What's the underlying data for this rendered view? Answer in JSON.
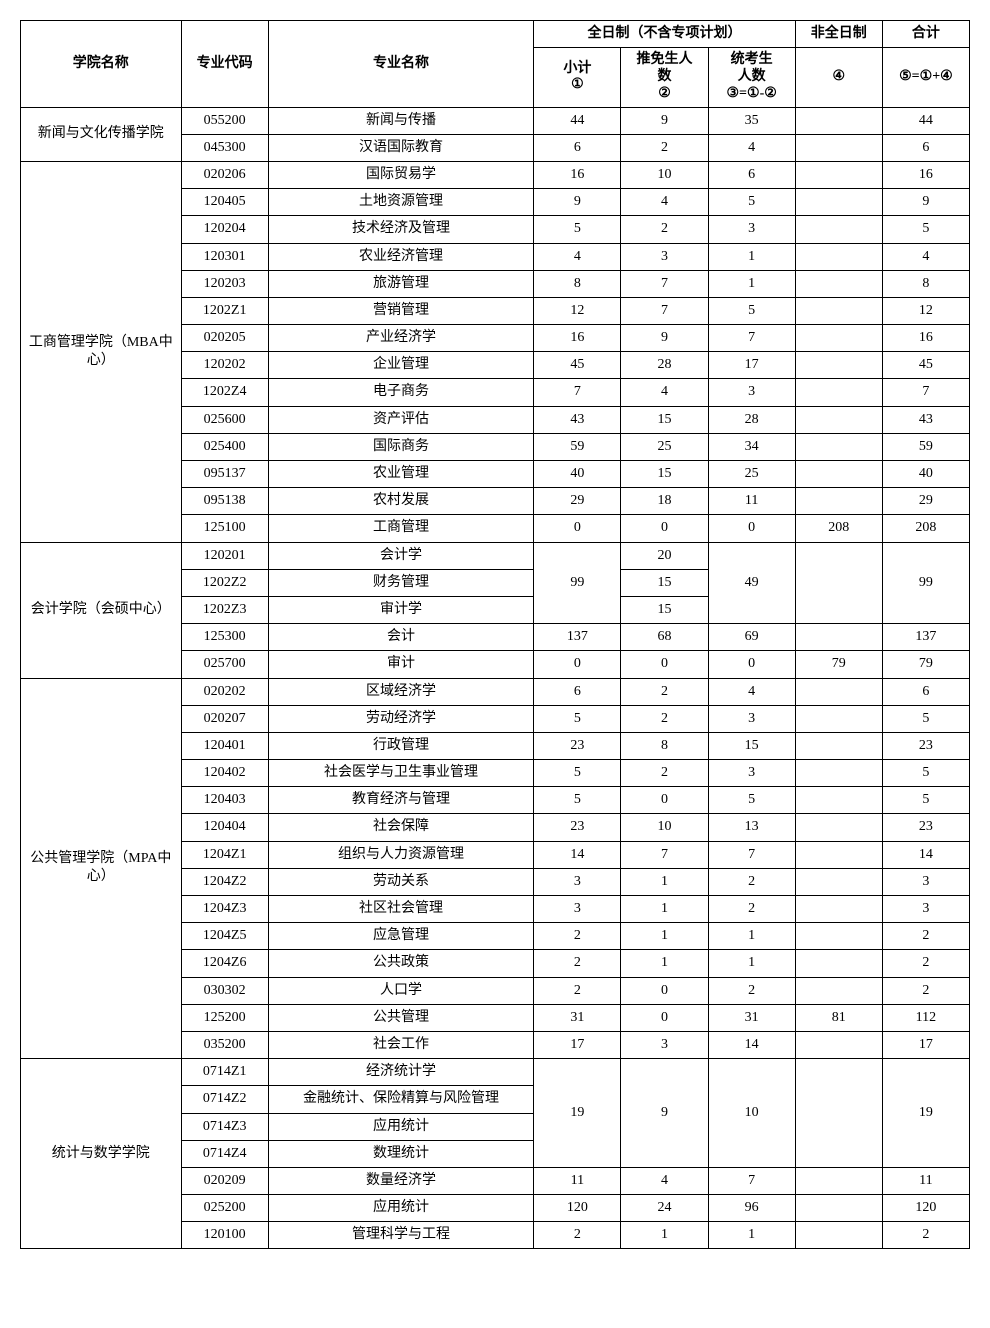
{
  "headers": {
    "college": "学院名称",
    "code": "专业代码",
    "major": "专业名称",
    "fulltime": "全日制（不含专项计划）",
    "parttime": "非全日制",
    "total": "合计",
    "subtotal_line1": "小计",
    "subtotal_line2": "①",
    "rec_line1": "推免生人",
    "rec_line2": "数",
    "rec_line3": "②",
    "exam_line1": "统考生",
    "exam_line2": "人数",
    "exam_line3": "③=①-②",
    "col4": "④",
    "col5": "⑤=①+④"
  },
  "groups": [
    {
      "name": "新闻与文化传播学院",
      "rows": [
        {
          "code": "055200",
          "major": "新闻与传播",
          "c1": "44",
          "c2": "9",
          "c3": "35",
          "c4": "",
          "c5": "44"
        },
        {
          "code": "045300",
          "major": "汉语国际教育",
          "c1": "6",
          "c2": "2",
          "c3": "4",
          "c4": "",
          "c5": "6"
        }
      ]
    },
    {
      "name": "工商管理学院（MBA中心）",
      "rows": [
        {
          "code": "020206",
          "major": "国际贸易学",
          "c1": "16",
          "c2": "10",
          "c3": "6",
          "c4": "",
          "c5": "16"
        },
        {
          "code": "120405",
          "major": "土地资源管理",
          "c1": "9",
          "c2": "4",
          "c3": "5",
          "c4": "",
          "c5": "9"
        },
        {
          "code": "120204",
          "major": "技术经济及管理",
          "c1": "5",
          "c2": "2",
          "c3": "3",
          "c4": "",
          "c5": "5"
        },
        {
          "code": "120301",
          "major": "农业经济管理",
          "c1": "4",
          "c2": "3",
          "c3": "1",
          "c4": "",
          "c5": "4"
        },
        {
          "code": "120203",
          "major": "旅游管理",
          "c1": "8",
          "c2": "7",
          "c3": "1",
          "c4": "",
          "c5": "8"
        },
        {
          "code": "1202Z1",
          "major": "营销管理",
          "c1": "12",
          "c2": "7",
          "c3": "5",
          "c4": "",
          "c5": "12"
        },
        {
          "code": "020205",
          "major": "产业经济学",
          "c1": "16",
          "c2": "9",
          "c3": "7",
          "c4": "",
          "c5": "16"
        },
        {
          "code": "120202",
          "major": "企业管理",
          "c1": "45",
          "c2": "28",
          "c3": "17",
          "c4": "",
          "c5": "45"
        },
        {
          "code": "1202Z4",
          "major": "电子商务",
          "c1": "7",
          "c2": "4",
          "c3": "3",
          "c4": "",
          "c5": "7"
        },
        {
          "code": "025600",
          "major": "资产评估",
          "c1": "43",
          "c2": "15",
          "c3": "28",
          "c4": "",
          "c5": "43"
        },
        {
          "code": "025400",
          "major": "国际商务",
          "c1": "59",
          "c2": "25",
          "c3": "34",
          "c4": "",
          "c5": "59"
        },
        {
          "code": "095137",
          "major": "农业管理",
          "c1": "40",
          "c2": "15",
          "c3": "25",
          "c4": "",
          "c5": "40"
        },
        {
          "code": "095138",
          "major": "农村发展",
          "c1": "29",
          "c2": "18",
          "c3": "11",
          "c4": "",
          "c5": "29"
        },
        {
          "code": "125100",
          "major": "工商管理",
          "c1": "0",
          "c2": "0",
          "c3": "0",
          "c4": "208",
          "c5": "208"
        }
      ]
    },
    {
      "name": "会计学院（会硕中心）",
      "mergedBlocks": [
        {
          "span": 3,
          "c1": "99",
          "c3": "49",
          "c4": "",
          "c5": "99",
          "inner": [
            {
              "code": "120201",
              "major": "会计学",
              "c2": "20"
            },
            {
              "code": "1202Z2",
              "major": "财务管理",
              "c2": "15"
            },
            {
              "code": "1202Z3",
              "major": "审计学",
              "c2": "15"
            }
          ]
        }
      ],
      "rows": [
        {
          "code": "125300",
          "major": "会计",
          "c1": "137",
          "c2": "68",
          "c3": "69",
          "c4": "",
          "c5": "137"
        },
        {
          "code": "025700",
          "major": "审计",
          "c1": "0",
          "c2": "0",
          "c3": "0",
          "c4": "79",
          "c5": "79"
        }
      ]
    },
    {
      "name": "公共管理学院（MPA中心）",
      "rows": [
        {
          "code": "020202",
          "major": "区域经济学",
          "c1": "6",
          "c2": "2",
          "c3": "4",
          "c4": "",
          "c5": "6"
        },
        {
          "code": "020207",
          "major": "劳动经济学",
          "c1": "5",
          "c2": "2",
          "c3": "3",
          "c4": "",
          "c5": "5"
        },
        {
          "code": "120401",
          "major": "行政管理",
          "c1": "23",
          "c2": "8",
          "c3": "15",
          "c4": "",
          "c5": "23"
        },
        {
          "code": "120402",
          "major": "社会医学与卫生事业管理",
          "c1": "5",
          "c2": "2",
          "c3": "3",
          "c4": "",
          "c5": "5"
        },
        {
          "code": "120403",
          "major": "教育经济与管理",
          "c1": "5",
          "c2": "0",
          "c3": "5",
          "c4": "",
          "c5": "5"
        },
        {
          "code": "120404",
          "major": "社会保障",
          "c1": "23",
          "c2": "10",
          "c3": "13",
          "c4": "",
          "c5": "23"
        },
        {
          "code": "1204Z1",
          "major": "组织与人力资源管理",
          "c1": "14",
          "c2": "7",
          "c3": "7",
          "c4": "",
          "c5": "14"
        },
        {
          "code": "1204Z2",
          "major": "劳动关系",
          "c1": "3",
          "c2": "1",
          "c3": "2",
          "c4": "",
          "c5": "3"
        },
        {
          "code": "1204Z3",
          "major": "社区社会管理",
          "c1": "3",
          "c2": "1",
          "c3": "2",
          "c4": "",
          "c5": "3"
        },
        {
          "code": "1204Z5",
          "major": "应急管理",
          "c1": "2",
          "c2": "1",
          "c3": "1",
          "c4": "",
          "c5": "2"
        },
        {
          "code": "1204Z6",
          "major": "公共政策",
          "c1": "2",
          "c2": "1",
          "c3": "1",
          "c4": "",
          "c5": "2"
        },
        {
          "code": "030302",
          "major": "人口学",
          "c1": "2",
          "c2": "0",
          "c3": "2",
          "c4": "",
          "c5": "2"
        },
        {
          "code": "125200",
          "major": "公共管理",
          "c1": "31",
          "c2": "0",
          "c3": "31",
          "c4": "81",
          "c5": "112"
        },
        {
          "code": "035200",
          "major": "社会工作",
          "c1": "17",
          "c2": "3",
          "c3": "14",
          "c4": "",
          "c5": "17"
        }
      ]
    },
    {
      "name": "统计与数学学院",
      "mergedBlocks": [
        {
          "span": 4,
          "c1": "19",
          "c2": "9",
          "c3": "10",
          "c4": "",
          "c5": "19",
          "inner": [
            {
              "code": "0714Z1",
              "major": "经济统计学"
            },
            {
              "code": "0714Z2",
              "major": "金融统计、保险精算与风险管理"
            },
            {
              "code": "0714Z3",
              "major": "应用统计"
            },
            {
              "code": "0714Z4",
              "major": "数理统计"
            }
          ]
        }
      ],
      "rows": [
        {
          "code": "020209",
          "major": "数量经济学",
          "c1": "11",
          "c2": "4",
          "c3": "7",
          "c4": "",
          "c5": "11"
        },
        {
          "code": "025200",
          "major": "应用统计",
          "c1": "120",
          "c2": "24",
          "c3": "96",
          "c4": "",
          "c5": "120"
        },
        {
          "code": "120100",
          "major": "管理科学与工程",
          "c1": "2",
          "c2": "1",
          "c3": "1",
          "c4": "",
          "c5": "2"
        }
      ]
    }
  ]
}
